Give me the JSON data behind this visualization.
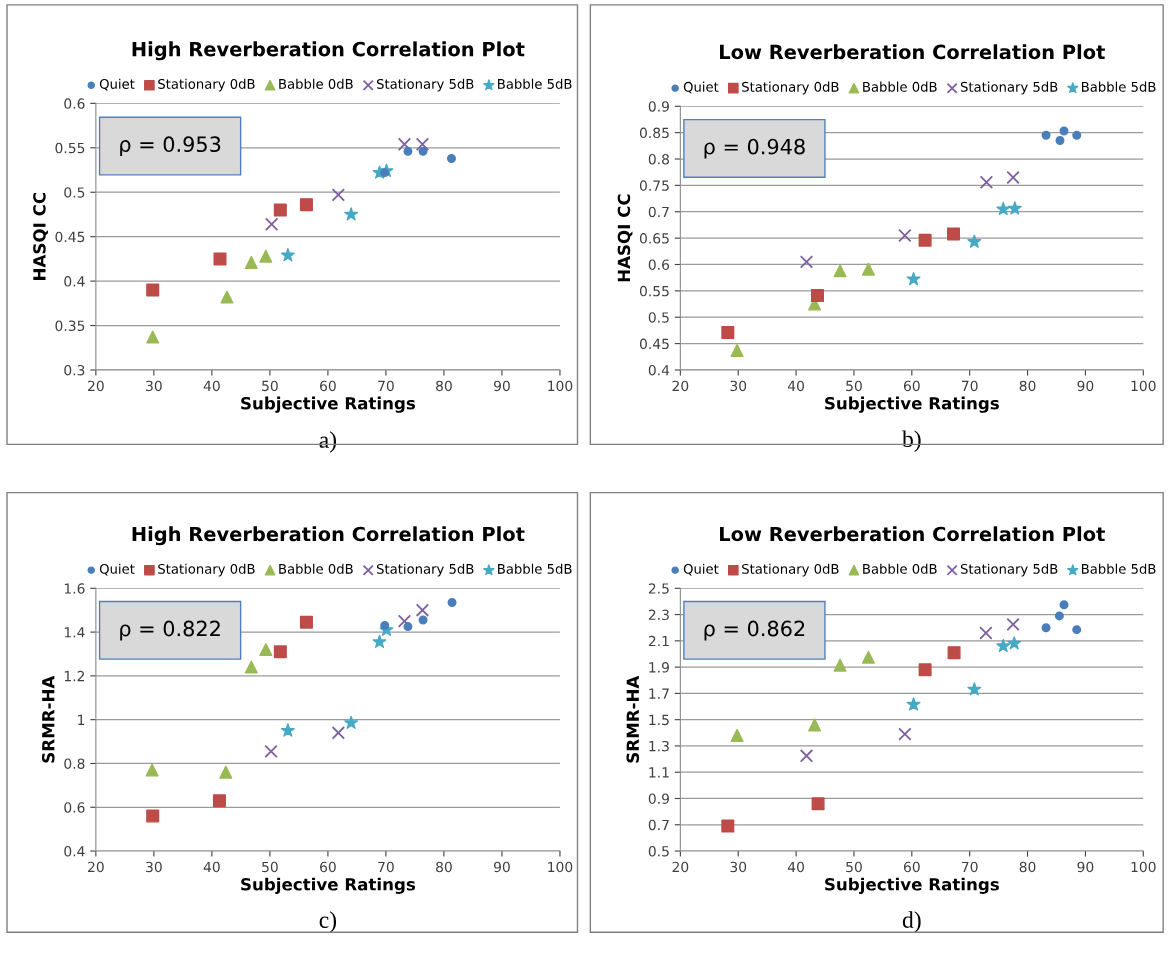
{
  "chart_data": [
    {
      "type": "scatter",
      "title": "High Reverberation Correlation Plot",
      "xlabel": "Subjective Ratings",
      "ylabel": "HASQI CC",
      "xlim": [
        20,
        100
      ],
      "xticks": [
        20,
        30,
        40,
        50,
        60,
        70,
        80,
        90,
        100
      ],
      "ylim": [
        0.3,
        0.6
      ],
      "yticks": [
        0.3,
        0.35,
        0.4,
        0.45,
        0.5,
        0.55,
        0.6
      ],
      "grid": "y",
      "legend": "top",
      "annotations": [
        "ρ = 0.953",
        "a)"
      ],
      "series": [
        {
          "name": "Quiet",
          "color": "#4a7ebb",
          "marker": "circle",
          "x": [
            69.8,
            73.8,
            76.4,
            81.3
          ],
          "values": [
            0.522,
            0.546,
            0.546,
            0.538
          ]
        },
        {
          "name": "Stationary 0dB",
          "color": "#be4b48",
          "marker": "square",
          "x": [
            29.8,
            41.4,
            51.8,
            56.3
          ],
          "values": [
            0.39,
            0.425,
            0.48,
            0.486
          ]
        },
        {
          "name": "Babble 0dB",
          "color": "#98b954",
          "marker": "triangle",
          "x": [
            29.8,
            42.6,
            46.8,
            49.3
          ],
          "values": [
            0.337,
            0.382,
            0.421,
            0.428
          ]
        },
        {
          "name": "Stationary 5dB",
          "color": "#7d60a0",
          "marker": "cross",
          "x": [
            50.3,
            61.8,
            73.2,
            76.3
          ],
          "values": [
            0.464,
            0.497,
            0.554,
            0.554
          ]
        },
        {
          "name": "Babble 5dB",
          "color": "#46aac5",
          "marker": "star",
          "x": [
            53.1,
            64.0,
            68.9,
            70.1
          ],
          "values": [
            0.429,
            0.475,
            0.522,
            0.524
          ]
        }
      ]
    },
    {
      "type": "scatter",
      "title": "Low Reverberation Correlation Plot",
      "xlabel": "Subjective Ratings",
      "ylabel": "HASQI CC",
      "xlim": [
        20,
        100
      ],
      "xticks": [
        20,
        30,
        40,
        50,
        60,
        70,
        80,
        90,
        100
      ],
      "ylim": [
        0.4,
        0.9
      ],
      "yticks": [
        0.4,
        0.45,
        0.5,
        0.55,
        0.6,
        0.65,
        0.7,
        0.75,
        0.8,
        0.85,
        0.9
      ],
      "grid": "y",
      "legend": "top",
      "annotations": [
        "ρ = 0.948",
        "b)"
      ],
      "series": [
        {
          "name": "Quiet",
          "color": "#4a7ebb",
          "marker": "circle",
          "x": [
            83.2,
            85.6,
            86.3,
            88.5
          ],
          "values": [
            0.845,
            0.835,
            0.853,
            0.845
          ]
        },
        {
          "name": "Stationary 0dB",
          "color": "#be4b48",
          "marker": "square",
          "x": [
            28.2,
            43.7,
            62.3,
            67.2
          ],
          "values": [
            0.471,
            0.541,
            0.646,
            0.658
          ]
        },
        {
          "name": "Babble 0dB",
          "color": "#98b954",
          "marker": "triangle",
          "x": [
            29.8,
            43.2,
            47.6,
            52.5
          ],
          "values": [
            0.437,
            0.525,
            0.588,
            0.591
          ]
        },
        {
          "name": "Stationary 5dB",
          "color": "#7d60a0",
          "marker": "cross",
          "x": [
            41.8,
            58.8,
            72.9,
            77.5
          ],
          "values": [
            0.605,
            0.655,
            0.756,
            0.765
          ]
        },
        {
          "name": "Babble 5dB",
          "color": "#46aac5",
          "marker": "star",
          "x": [
            60.3,
            70.8,
            75.8,
            77.8
          ],
          "values": [
            0.572,
            0.643,
            0.705,
            0.706
          ]
        }
      ]
    },
    {
      "type": "scatter",
      "title": "High Reverberation Correlation Plot",
      "xlabel": "Subjective Ratings",
      "ylabel": "SRMR-HA",
      "xlim": [
        20,
        100
      ],
      "xticks": [
        20,
        30,
        40,
        50,
        60,
        70,
        80,
        90,
        100
      ],
      "ylim": [
        0.4,
        1.6
      ],
      "yticks": [
        0.4,
        0.6,
        0.8,
        1,
        1.2,
        1.4,
        1.6
      ],
      "grid": "y",
      "legend": "top",
      "annotations": [
        "ρ = 0.822",
        "c)"
      ],
      "series": [
        {
          "name": "Quiet",
          "color": "#4a7ebb",
          "marker": "circle",
          "x": [
            69.8,
            73.8,
            76.4,
            81.4
          ],
          "values": [
            1.43,
            1.425,
            1.455,
            1.535
          ]
        },
        {
          "name": "Stationary 0dB",
          "color": "#be4b48",
          "marker": "square",
          "x": [
            29.8,
            41.3,
            51.8,
            56.3
          ],
          "values": [
            0.56,
            0.63,
            1.31,
            1.445
          ]
        },
        {
          "name": "Babble 0dB",
          "color": "#98b954",
          "marker": "triangle",
          "x": [
            29.7,
            42.4,
            46.8,
            49.3
          ],
          "values": [
            0.77,
            0.76,
            1.24,
            1.32
          ]
        },
        {
          "name": "Stationary 5dB",
          "color": "#7d60a0",
          "marker": "cross",
          "x": [
            50.2,
            61.8,
            73.2,
            76.3
          ],
          "values": [
            0.855,
            0.94,
            1.45,
            1.5
          ]
        },
        {
          "name": "Babble 5dB",
          "color": "#46aac5",
          "marker": "star",
          "x": [
            53.1,
            64.0,
            68.9,
            70.1
          ],
          "values": [
            0.95,
            0.985,
            1.355,
            1.41
          ]
        }
      ]
    },
    {
      "type": "scatter",
      "title": "Low Reverberation Correlation Plot",
      "xlabel": "Subjective Ratings",
      "ylabel": "SRMR-HA",
      "xlim": [
        20,
        100
      ],
      "xticks": [
        20,
        30,
        40,
        50,
        60,
        70,
        80,
        90,
        100
      ],
      "ylim": [
        0.5,
        2.5
      ],
      "yticks": [
        0.5,
        0.7,
        0.9,
        1.1,
        1.3,
        1.5,
        1.7,
        1.9,
        2.1,
        2.3,
        2.5
      ],
      "grid": "y",
      "legend": "top",
      "annotations": [
        "ρ = 0.862",
        "d)"
      ],
      "series": [
        {
          "name": "Quiet",
          "color": "#4a7ebb",
          "marker": "circle",
          "x": [
            83.2,
            85.5,
            86.3,
            88.5
          ],
          "values": [
            2.2,
            2.29,
            2.375,
            2.185
          ]
        },
        {
          "name": "Stationary 0dB",
          "color": "#be4b48",
          "marker": "square",
          "x": [
            28.2,
            43.8,
            62.3,
            67.3
          ],
          "values": [
            0.69,
            0.86,
            1.88,
            2.01
          ]
        },
        {
          "name": "Babble 0dB",
          "color": "#98b954",
          "marker": "triangle",
          "x": [
            29.8,
            43.2,
            47.6,
            52.5
          ],
          "values": [
            1.38,
            1.46,
            1.915,
            1.975
          ]
        },
        {
          "name": "Stationary 5dB",
          "color": "#7d60a0",
          "marker": "cross",
          "x": [
            41.8,
            58.8,
            72.8,
            77.5
          ],
          "values": [
            1.225,
            1.39,
            2.16,
            2.225
          ]
        },
        {
          "name": "Babble 5dB",
          "color": "#46aac5",
          "marker": "star",
          "x": [
            60.3,
            70.8,
            75.8,
            77.7
          ],
          "values": [
            1.615,
            1.73,
            2.06,
            2.08
          ]
        }
      ]
    }
  ]
}
